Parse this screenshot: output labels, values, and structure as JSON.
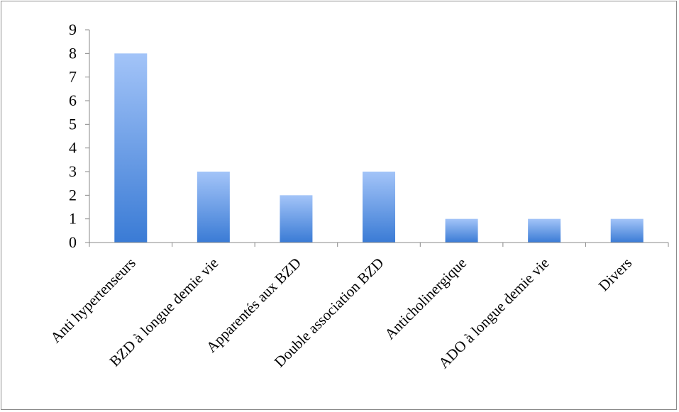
{
  "chart_data": {
    "type": "bar",
    "title": "",
    "xlabel": "",
    "ylabel": "",
    "categories": [
      "Anti hypertenseurs",
      "BZD à longue demie vie",
      "Apparentés aux BZD",
      "Double association BZD",
      "Anticholinergique",
      "ADO à longue demie vie",
      "Divers"
    ],
    "values": [
      8,
      3,
      2,
      3,
      1,
      1,
      1
    ],
    "ylim": [
      0,
      9
    ],
    "yticks": [
      "0",
      "1",
      "2",
      "3",
      "4",
      "5",
      "6",
      "7",
      "8",
      "9"
    ],
    "grid": false,
    "legend": "none",
    "bar_color_top": "#a3c4f8",
    "bar_color_bottom": "#3a7bd5",
    "axis_color": "#888888"
  }
}
